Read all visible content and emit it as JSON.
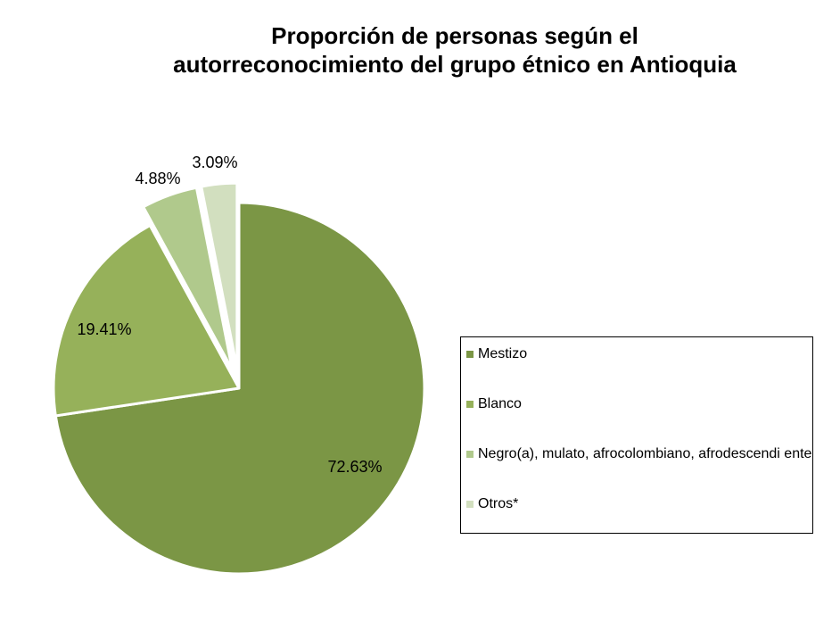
{
  "chart_data": {
    "type": "pie",
    "title_lines": [
      "Proporción de personas según el",
      "autorreconocimiento del grupo étnico en Antioquia"
    ],
    "slices": [
      {
        "name": "Mestizo",
        "value": 72.63,
        "label": "72.63%",
        "color": "#7b9645"
      },
      {
        "name": "Blanco",
        "value": 19.41,
        "label": "19.41%",
        "color": "#96b15a"
      },
      {
        "name": "Negro(a), mulato, afrocolombiano, afrodescendiente",
        "value": 4.88,
        "label": "4.88%",
        "color": "#b0c98c"
      },
      {
        "name": "Otros*",
        "value": 3.09,
        "label": "3.09%",
        "color": "#d2dfbf"
      }
    ],
    "legend_labels": [
      "Mestizo",
      "Blanco",
      "Negro(a), mulato, afrocolombiano, afrodescendi ente",
      "Otros*"
    ],
    "legend_position": "right"
  }
}
